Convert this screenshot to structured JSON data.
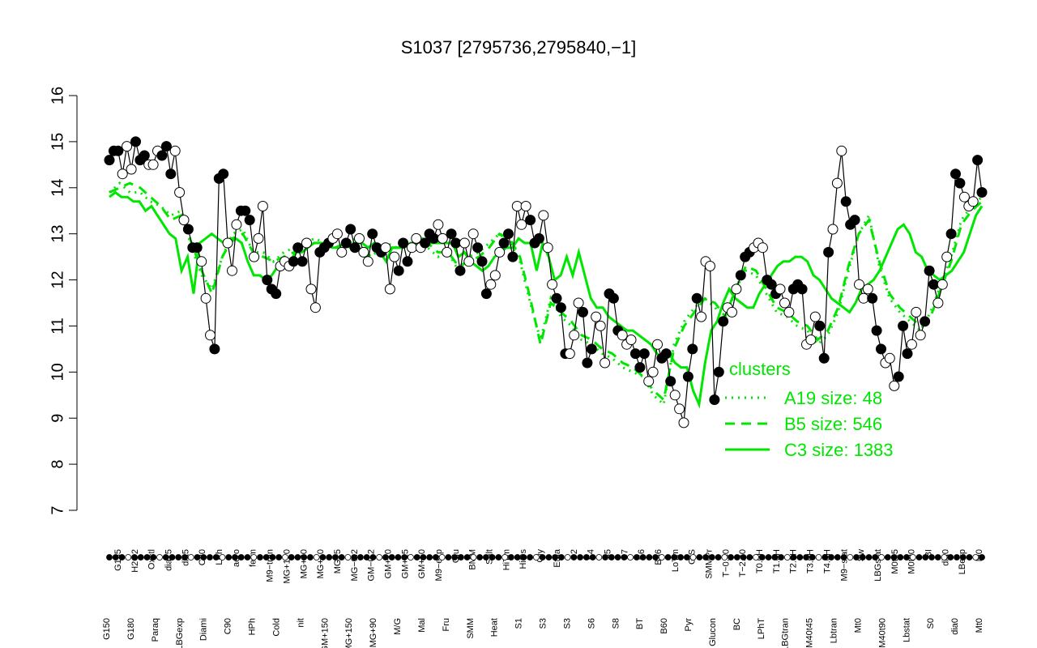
{
  "chart_data": {
    "type": "line",
    "title": "S1037 [2795736,2795840,−1]",
    "xlabel": "",
    "ylabel": "",
    "ylim": [
      7,
      16
    ],
    "yticks": [
      7,
      8,
      9,
      10,
      11,
      12,
      13,
      14,
      15,
      16
    ],
    "colors": {
      "line": "#00e600",
      "point_fill_dark": "#000000",
      "point_fill_light": "#ffffff",
      "axis": "#000000"
    },
    "xtick_labels_top": [
      "G135",
      "H2O2",
      "Oxctl",
      "dia15",
      "dia5",
      "C30",
      "LPh",
      "aero",
      "ferm",
      "M9−tran",
      "MG+120",
      "MG+60",
      "MG+10",
      "MG+5",
      "MG−0.2",
      "GM−0.2",
      "GM+10",
      "GM+15",
      "GM+60",
      "M9−exp",
      "Glu",
      "BMM",
      "Salt",
      "HiTm",
      "HiOs",
      "Gly",
      "Etha",
      "S2",
      "S4",
      "S5",
      "S7",
      "S6",
      "B36",
      "LoTm",
      "G/S",
      "SMMPr",
      "T−0.40",
      "T−2.40",
      "T0.0H",
      "T1.0H",
      "T2.0H",
      "T3.0H",
      "T4.0H",
      "M9−stat",
      "Sw",
      "LBGstat",
      "M0t45",
      "M0t90",
      "BI",
      "dia0",
      "LBexp",
      "M0"
    ],
    "xtick_labels_bottom": [
      "G150",
      "G180",
      "Paraq",
      "LBGexp",
      "Diami",
      "C90",
      "HPh",
      "Cold",
      "nit",
      "GM+150",
      "MG+150",
      "MG+90",
      "M/G",
      "Mal",
      "Fru",
      "SMM",
      "Heat",
      "S1",
      "S3",
      "S3",
      "S6",
      "S8",
      "BT",
      "B60",
      "Pyr",
      "Glucon",
      "BC",
      "LPhT",
      "LBGtran",
      "M40t45",
      "Lbtran",
      "Mt0",
      "M40t90",
      "Lbstat",
      "S0",
      "dia0",
      "Mt0"
    ],
    "legend": {
      "title": "clusters",
      "entries": [
        "A19 size: 48",
        "B5 size: 546",
        "C3 size: 1383"
      ]
    },
    "series": [
      {
        "name": "C3 size: 1383",
        "values": [
          13.8,
          13.9,
          13.8,
          13.8,
          13.7,
          13.7,
          13.5,
          13.6,
          13.4,
          13.2,
          13.0,
          12.9,
          12.2,
          12.5,
          11.7,
          12.8,
          12.9,
          13.0,
          12.9,
          12.8,
          12.8,
          12.9,
          12.8,
          12.4,
          12.1,
          12.1,
          12.0,
          12.1,
          12.3,
          12.5,
          12.4,
          12.6,
          12.6,
          12.7,
          12.8,
          12.8,
          12.8,
          12.7,
          12.7,
          12.8,
          12.7,
          12.8,
          12.8,
          12.7,
          12.8,
          12.6,
          12.4,
          12.7,
          12.7,
          12.7,
          12.8,
          12.8,
          12.9,
          12.8,
          12.8,
          12.8,
          12.8,
          12.8,
          12.5,
          12.6,
          12.4,
          12.3,
          12.2,
          12.3,
          12.5,
          12.6,
          12.7,
          12.7,
          12.9,
          12.8,
          12.8,
          12.2,
          12.8,
          12.5,
          12.0,
          12.1,
          12.5,
          12.1,
          12.6,
          12.1,
          11.6,
          11.4,
          11.4,
          11.2,
          11.1,
          11.0,
          10.9,
          10.9,
          10.8,
          10.7,
          10.6,
          10.4,
          10.3,
          10.4,
          10.2,
          10.1,
          10.1,
          9.6,
          9.3,
          10.2,
          10.9,
          11.1,
          11.5,
          11.8,
          11.6,
          11.5,
          11.4,
          11.4,
          11.7,
          11.9,
          12.1,
          12.3,
          12.4,
          12.4,
          12.5,
          12.5,
          12.4,
          12.1,
          12.0,
          11.8,
          11.6,
          11.5,
          11.4,
          11.3,
          11.5,
          11.8,
          11.9,
          12.0,
          12.2,
          12.5,
          12.8,
          13.1,
          13.2,
          13.0,
          12.6,
          12.5,
          12.2,
          12.1,
          12.0,
          12.1,
          12.2,
          12.4,
          12.6,
          13.0,
          13.4,
          13.6
        ]
      },
      {
        "name": "B5 size: 546",
        "values": [
          13.9,
          14.0,
          14.1,
          14.0,
          13.8,
          13.6,
          13.3,
          13.4,
          12.8,
          12.2,
          11.7,
          12.5,
          12.9,
          13.0,
          12.6,
          12.5,
          12.4,
          12.5,
          12.6,
          12.7,
          12.8,
          12.8,
          12.7,
          12.8,
          12.8,
          12.5,
          12.6,
          12.7,
          12.7,
          12.7,
          12.8,
          12.8,
          12.6,
          12.6,
          12.3,
          12.4,
          12.5,
          12.7,
          13.0,
          12.9,
          12.5,
          11.6,
          10.6,
          11.5,
          11.3,
          11.1,
          10.8,
          10.7,
          10.5,
          10.4,
          10.2,
          10.1,
          9.9,
          9.6,
          9.4,
          10.5,
          11.0,
          11.3,
          11.6,
          11.5,
          11.2,
          11.8,
          12.3,
          12.2,
          11.8,
          11.4,
          11.3,
          11.1,
          11.0,
          10.7,
          10.9,
          11.4,
          12.3,
          13.0,
          13.3,
          12.4,
          11.7,
          11.4,
          11.2,
          11.0,
          11.2,
          11.8,
          12.4,
          13.2,
          13.5,
          13.7
        ]
      },
      {
        "name": "A19 size: 48",
        "values": [
          13.9,
          14.1,
          13.9,
          13.9,
          13.7,
          13.6,
          13.4,
          13.5,
          12.7,
          12.1,
          11.8,
          12.5,
          13.0,
          13.1,
          12.6,
          12.6,
          12.4,
          12.6,
          12.7,
          12.8,
          12.9,
          12.8,
          12.7,
          12.8,
          12.9,
          12.4,
          12.6,
          12.8,
          12.7,
          12.8,
          12.9,
          12.7,
          12.5,
          12.6,
          12.2,
          12.5,
          12.6,
          12.8,
          13.0,
          12.8,
          12.4,
          11.5,
          10.7,
          11.6,
          11.2,
          11.0,
          10.7,
          10.6,
          10.4,
          10.3,
          10.1,
          10.0,
          9.9,
          9.5,
          9.3,
          10.6,
          11.1,
          11.4,
          11.6,
          11.4,
          11.1,
          11.8,
          12.2,
          12.1,
          11.7,
          11.3,
          11.2,
          11.0,
          10.9,
          10.6,
          10.8,
          11.3,
          12.2,
          13.0,
          13.4,
          12.3,
          11.6,
          11.3,
          11.1,
          10.9,
          11.3,
          11.9,
          12.5,
          13.3,
          13.6,
          13.8
        ]
      }
    ],
    "points": [
      14.6,
      14.8,
      14.8,
      14.3,
      14.9,
      14.4,
      15.0,
      14.6,
      14.7,
      14.5,
      14.5,
      14.8,
      14.7,
      14.9,
      14.3,
      14.8,
      13.9,
      13.3,
      13.1,
      12.7,
      12.7,
      12.4,
      11.6,
      10.8,
      10.5,
      14.2,
      14.3,
      12.8,
      12.2,
      13.2,
      13.5,
      13.5,
      13.3,
      12.5,
      12.9,
      13.6,
      12.0,
      11.8,
      11.7,
      12.3,
      12.4,
      12.3,
      12.4,
      12.7,
      12.4,
      12.8,
      11.8,
      11.4,
      12.6,
      12.7,
      12.8,
      12.9,
      13.0,
      12.6,
      12.8,
      13.1,
      12.7,
      12.9,
      12.6,
      12.4,
      13.0,
      12.7,
      12.6,
      12.7,
      11.8,
      12.5,
      12.2,
      12.8,
      12.4,
      12.7,
      12.9,
      12.7,
      12.8,
      13.0,
      12.9,
      13.2,
      12.9,
      12.6,
      13.0,
      12.8,
      12.2,
      12.8,
      12.4,
      13.0,
      12.7,
      12.4,
      11.7,
      11.9,
      12.1,
      12.6,
      12.8,
      13.0,
      12.5,
      13.6,
      13.2,
      13.6,
      13.3,
      12.8,
      12.9,
      13.4,
      12.7,
      11.9,
      11.6,
      11.4,
      10.4,
      10.4,
      10.8,
      11.5,
      11.3,
      10.2,
      10.5,
      11.2,
      11.0,
      10.2,
      11.7,
      11.6,
      10.9,
      10.8,
      10.6,
      10.7,
      10.4,
      10.1,
      10.4,
      9.8,
      10.0,
      10.6,
      10.3,
      10.4,
      9.8,
      9.5,
      9.2,
      8.9,
      9.9,
      10.5,
      11.6,
      11.2,
      12.4,
      12.3,
      9.4,
      10.0,
      11.1,
      11.4,
      11.3,
      11.8,
      12.1,
      12.5,
      12.6,
      12.7,
      12.8,
      12.7,
      12.0,
      11.9,
      11.7,
      11.8,
      11.5,
      11.3,
      11.8,
      11.9,
      11.8,
      10.6,
      10.7,
      11.2,
      11.0,
      10.3,
      12.6,
      13.1,
      14.1,
      14.8,
      13.7,
      13.2,
      13.3,
      11.9,
      11.6,
      11.8,
      11.6,
      10.9,
      10.5,
      10.2,
      10.3,
      9.7,
      9.9,
      11.0,
      10.4,
      10.6,
      11.3,
      10.8,
      11.1,
      12.2,
      11.9,
      11.5,
      11.9,
      12.5,
      13.0,
      14.3,
      14.1,
      13.8,
      13.6,
      13.7,
      14.6,
      13.9
    ]
  }
}
